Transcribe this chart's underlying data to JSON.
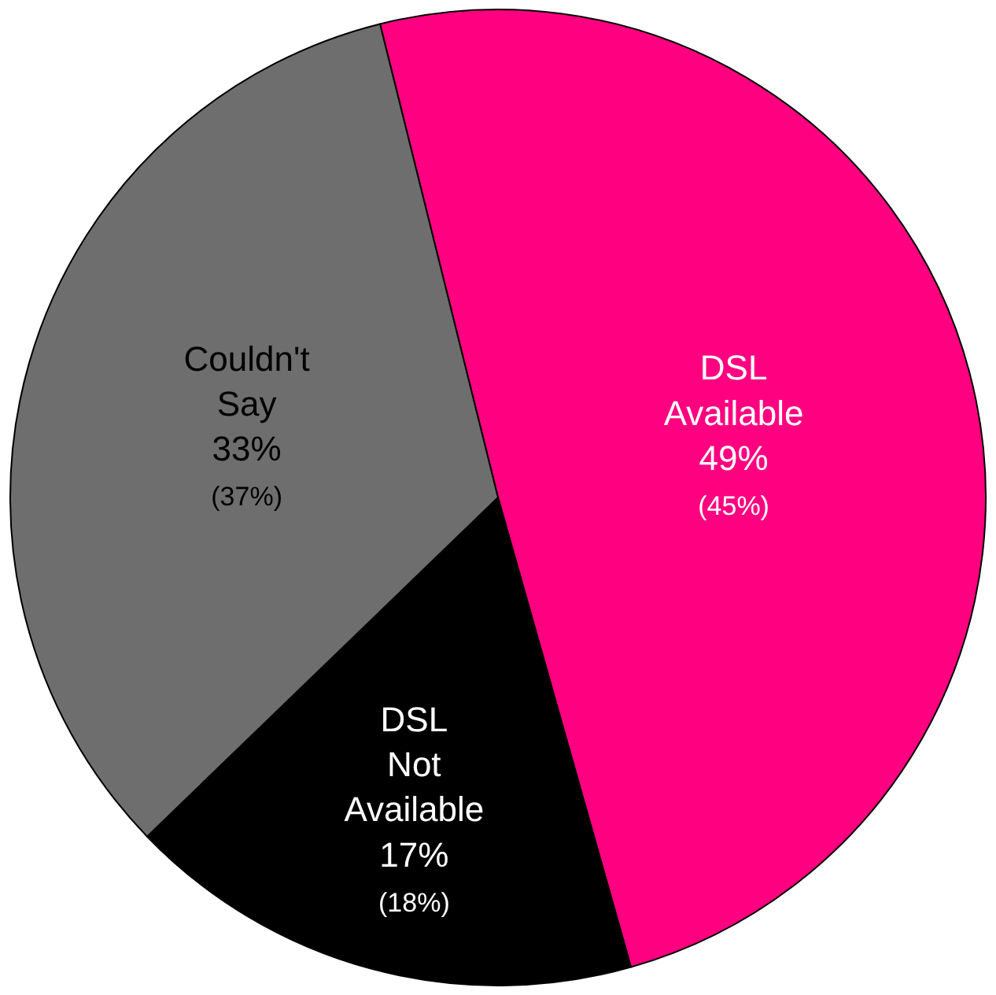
{
  "chart_data": {
    "type": "pie",
    "categories": [
      "DSL Available",
      "DSL Not Available",
      "Couldn't Say"
    ],
    "values": [
      49,
      17,
      33
    ],
    "colors": [
      "#ff0080",
      "#000000",
      "#6e6e6e"
    ],
    "value_labels": [
      "49%",
      "17%",
      "33%"
    ],
    "annotations": [
      "(45%)",
      "(18%)",
      "(37%)"
    ],
    "legend": false
  }
}
